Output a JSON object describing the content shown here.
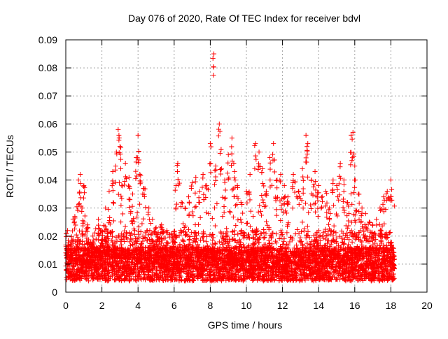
{
  "chart_data": {
    "type": "scatter",
    "title": "Day 076 of 2020, Rate Of TEC Index for receiver bdvl",
    "xlabel": "GPS time / hours",
    "ylabel": "ROTI / TECUs",
    "xlim": [
      0,
      20
    ],
    "ylim": [
      0,
      0.09
    ],
    "x_ticks": [
      0,
      2,
      4,
      6,
      8,
      10,
      12,
      14,
      16,
      18,
      20
    ],
    "y_ticks": [
      0,
      0.01,
      0.02,
      0.03,
      0.04,
      0.05,
      0.06,
      0.07,
      0.08,
      0.09
    ],
    "x_tick_labels": [
      "0",
      "2",
      "4",
      "6",
      "8",
      "10",
      "12",
      "14",
      "16",
      "18",
      "20"
    ],
    "y_tick_labels": [
      "0",
      "0.01",
      "0.02",
      "0.03",
      "0.04",
      "0.05",
      "0.06",
      "0.07",
      "0.08",
      "0.09"
    ],
    "grid": true,
    "marker": "+",
    "color": "#ff0000",
    "data_extent_hours": [
      0,
      18.2
    ],
    "series": [
      {
        "name": "ROTI",
        "note": "dense cloud of several thousand points; typical values 0.005-0.015, envelope rising to ~0.025-0.04 with sporadic peaks",
        "x": [
          0.1,
          0.3,
          0.5,
          0.7,
          0.8,
          0.9,
          1.0,
          1.2,
          1.5,
          1.8,
          2.0,
          2.2,
          2.4,
          2.6,
          2.8,
          2.9,
          3.0,
          3.1,
          3.3,
          3.5,
          3.7,
          3.9,
          4.0,
          4.1,
          4.3,
          4.6,
          4.8,
          5.0,
          5.3,
          5.6,
          5.9,
          6.1,
          6.2,
          6.4,
          6.6,
          6.8,
          7.0,
          7.2,
          7.4,
          7.6,
          7.8,
          8.0,
          8.2,
          8.3,
          8.5,
          8.6,
          8.8,
          9.0,
          9.2,
          9.3,
          9.5,
          9.7,
          10.0,
          10.2,
          10.5,
          10.7,
          10.9,
          11.1,
          11.3,
          11.5,
          11.7,
          11.9,
          12.1,
          12.3,
          12.6,
          12.9,
          13.1,
          13.3,
          13.4,
          13.6,
          13.8,
          14.0,
          14.2,
          14.4,
          14.6,
          14.8,
          15.0,
          15.2,
          15.4,
          15.6,
          15.8,
          15.9,
          16.0,
          16.2,
          16.4,
          16.6,
          16.8,
          17.0,
          17.2,
          17.4,
          17.6,
          17.8,
          18.0
        ],
        "y": [
          0.022,
          0.018,
          0.027,
          0.04,
          0.042,
          0.03,
          0.038,
          0.024,
          0.02,
          0.026,
          0.022,
          0.03,
          0.036,
          0.043,
          0.05,
          0.058,
          0.052,
          0.038,
          0.046,
          0.041,
          0.035,
          0.048,
          0.056,
          0.042,
          0.037,
          0.03,
          0.026,
          0.023,
          0.024,
          0.022,
          0.02,
          0.038,
          0.046,
          0.032,
          0.03,
          0.034,
          0.039,
          0.041,
          0.036,
          0.042,
          0.038,
          0.053,
          0.085,
          0.045,
          0.06,
          0.051,
          0.04,
          0.049,
          0.055,
          0.046,
          0.038,
          0.032,
          0.036,
          0.042,
          0.053,
          0.05,
          0.044,
          0.036,
          0.048,
          0.053,
          0.04,
          0.042,
          0.038,
          0.034,
          0.042,
          0.036,
          0.044,
          0.056,
          0.053,
          0.04,
          0.043,
          0.038,
          0.034,
          0.036,
          0.03,
          0.04,
          0.038,
          0.046,
          0.04,
          0.032,
          0.056,
          0.057,
          0.045,
          0.035,
          0.03,
          0.028,
          0.025,
          0.024,
          0.026,
          0.03,
          0.034,
          0.036,
          0.04
        ]
      }
    ]
  }
}
